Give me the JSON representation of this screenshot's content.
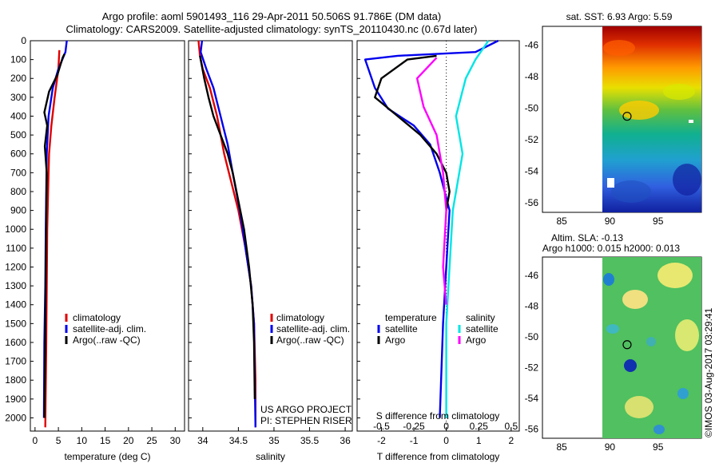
{
  "header": {
    "title_line1": "Argo profile: aoml 5901493_116 29-Apr-2011 50.506S 91.786E (DM data)",
    "title_line2": "Climatology: CARS2009. Satellite-adjusted climatology: synTS_20110430.nc (0.67d later)"
  },
  "colors": {
    "climatology": "#e00000",
    "satellite": "#0000ee",
    "argo": "#000000",
    "salinity_sat": "#00e5e5",
    "salinity_argo": "#ff00ff"
  },
  "chart_data": [
    {
      "type": "line",
      "name": "temperature",
      "xlabel": "temperature (deg C)",
      "xlim": [
        -1,
        32
      ],
      "ylim": [
        2070,
        0
      ],
      "xticks": [
        0,
        5,
        10,
        15,
        20,
        25,
        30
      ],
      "xtick_labels": [
        "0",
        "5",
        "10",
        "15",
        "20",
        "25",
        "30"
      ],
      "yticks": [
        0,
        100,
        200,
        300,
        400,
        500,
        600,
        700,
        800,
        900,
        1000,
        1100,
        1200,
        1300,
        1400,
        1500,
        1600,
        1700,
        1800,
        1900,
        2000
      ],
      "ytick_labels": [
        "0",
        "100",
        "200",
        "300",
        "400",
        "500",
        "600",
        "700",
        "800",
        "900",
        "1000",
        "1100",
        "1200",
        "1300",
        "1400",
        "1500",
        "1600",
        "1700",
        "1800",
        "1900",
        "2000"
      ],
      "legend": [
        "climatology",
        "satellite-adj. clim.",
        "Argo(..raw -QC)"
      ],
      "series": [
        {
          "name": "climatology",
          "color": "climatology",
          "points": [
            [
              5.2,
              50
            ],
            [
              5.0,
              150
            ],
            [
              4.2,
              300
            ],
            [
              3.5,
              450
            ],
            [
              3.0,
              600
            ],
            [
              2.8,
              800
            ],
            [
              2.6,
              1000
            ],
            [
              2.5,
              1300
            ],
            [
              2.4,
              1600
            ],
            [
              2.2,
              2050
            ]
          ]
        },
        {
          "name": "satellite-adj. clim.",
          "color": "satellite",
          "points": [
            [
              6.8,
              0
            ],
            [
              6.5,
              60
            ],
            [
              5.0,
              150
            ],
            [
              3.8,
              250
            ],
            [
              2.9,
              400
            ],
            [
              2.5,
              600
            ],
            [
              2.4,
              800
            ],
            [
              2.3,
              1000
            ],
            [
              2.2,
              1300
            ],
            [
              2.0,
              1600
            ],
            [
              1.9,
              2000
            ]
          ]
        },
        {
          "name": "Argo(..raw -QC)",
          "color": "argo",
          "points": [
            [
              6.3,
              70
            ],
            [
              5.9,
              90
            ],
            [
              4.8,
              180
            ],
            [
              3.0,
              270
            ],
            [
              2.0,
              380
            ],
            [
              2.6,
              450
            ],
            [
              2.1,
              560
            ],
            [
              2.5,
              700
            ],
            [
              2.4,
              900
            ],
            [
              2.3,
              1200
            ],
            [
              2.2,
              1500
            ],
            [
              2.1,
              1800
            ],
            [
              2.0,
              2000
            ]
          ]
        }
      ]
    },
    {
      "type": "line",
      "name": "salinity",
      "xlabel": "salinity",
      "xlim": [
        33.8,
        36.1
      ],
      "ylim": [
        2070,
        0
      ],
      "xticks": [
        34,
        34.5,
        35,
        35.5,
        36
      ],
      "xtick_labels": [
        "34",
        "34.5",
        "35",
        "35.5",
        "36"
      ],
      "legend": [
        "climatology",
        "satellite-adj. clim.",
        "Argo(..raw -QC)"
      ],
      "annotation_line1": "US ARGO PROJECT",
      "annotation_line2": "PI: STEPHEN RISER",
      "series": [
        {
          "name": "climatology",
          "color": "climatology",
          "points": [
            [
              33.94,
              0
            ],
            [
              33.96,
              80
            ],
            [
              34.0,
              150
            ],
            [
              34.1,
              250
            ],
            [
              34.2,
              400
            ],
            [
              34.3,
              600
            ],
            [
              34.4,
              750
            ],
            [
              34.5,
              900
            ],
            [
              34.6,
              1100
            ],
            [
              34.68,
              1300
            ],
            [
              34.72,
              1500
            ],
            [
              34.74,
              1800
            ],
            [
              34.74,
              2050
            ]
          ]
        },
        {
          "name": "satellite-adj. clim.",
          "color": "satellite",
          "points": [
            [
              33.99,
              0
            ],
            [
              33.97,
              60
            ],
            [
              34.05,
              150
            ],
            [
              34.15,
              250
            ],
            [
              34.25,
              400
            ],
            [
              34.35,
              550
            ],
            [
              34.42,
              700
            ],
            [
              34.52,
              900
            ],
            [
              34.6,
              1100
            ],
            [
              34.68,
              1300
            ],
            [
              34.72,
              1500
            ],
            [
              34.73,
              1800
            ],
            [
              34.74,
              2050
            ]
          ]
        },
        {
          "name": "Argo(..raw -QC)",
          "color": "argo",
          "points": [
            [
              33.96,
              80
            ],
            [
              34.02,
              200
            ],
            [
              34.08,
              300
            ],
            [
              34.15,
              400
            ],
            [
              34.25,
              500
            ],
            [
              34.35,
              600
            ],
            [
              34.42,
              700
            ],
            [
              34.5,
              850
            ],
            [
              34.58,
              1000
            ],
            [
              34.65,
              1200
            ],
            [
              34.7,
              1400
            ],
            [
              34.72,
              1600
            ],
            [
              34.73,
              1900
            ]
          ]
        }
      ]
    },
    {
      "type": "line",
      "name": "differences",
      "xlabel_top": "S difference from climatology",
      "xlabel": "T difference from climatology",
      "xlim": [
        -2.75,
        2.25
      ],
      "ylim": [
        2070,
        0
      ],
      "xticks": [
        -2,
        -1,
        0,
        1,
        2
      ],
      "xtick_labels": [
        "-2",
        "-1",
        "0",
        "1",
        "2"
      ],
      "sticks": [
        -2,
        -1,
        0,
        1,
        2
      ],
      "stick_labels": [
        "-0.5",
        "-0.25",
        "0",
        "0.25",
        "0.5"
      ],
      "legend_headers": [
        "temperature",
        "salinity"
      ],
      "legend": [
        "satellite",
        "Argo",
        "satellite",
        "Argo"
      ],
      "series": [
        {
          "name": "T satellite",
          "color": "satellite",
          "points": [
            [
              1.6,
              0
            ],
            [
              0.9,
              60
            ],
            [
              -1.5,
              80
            ],
            [
              -2.5,
              100
            ],
            [
              -2.2,
              250
            ],
            [
              -1.8,
              360
            ],
            [
              -1.0,
              450
            ],
            [
              -0.5,
              550
            ],
            [
              -0.2,
              700
            ],
            [
              0.1,
              900
            ],
            [
              0.0,
              1200
            ],
            [
              -0.1,
              1500
            ],
            [
              -0.2,
              2000
            ]
          ]
        },
        {
          "name": "T Argo",
          "color": "argo",
          "points": [
            [
              -0.3,
              80
            ],
            [
              -1.2,
              100
            ],
            [
              -2.0,
              200
            ],
            [
              -2.2,
              300
            ],
            [
              -1.5,
              400
            ],
            [
              -0.8,
              500
            ],
            [
              -0.3,
              600
            ],
            [
              0.0,
              700
            ],
            [
              0.1,
              800
            ],
            [
              0.0,
              900
            ]
          ]
        },
        {
          "name": "S satellite",
          "color": "salinity_sat",
          "points": [
            [
              1.3,
              0
            ],
            [
              0.9,
              100
            ],
            [
              0.6,
              200
            ],
            [
              0.3,
              400
            ],
            [
              0.4,
              500
            ],
            [
              0.5,
              600
            ],
            [
              0.4,
              700
            ],
            [
              0.2,
              900
            ],
            [
              0.1,
              1200
            ],
            [
              0.0,
              1500
            ],
            [
              0.0,
              2000
            ]
          ]
        },
        {
          "name": "S Argo",
          "color": "salinity_argo",
          "points": [
            [
              -0.3,
              90
            ],
            [
              -0.9,
              200
            ],
            [
              -0.7,
              350
            ],
            [
              -0.3,
              500
            ],
            [
              -0.1,
              700
            ],
            [
              0.0,
              900
            ],
            [
              -0.1,
              1200
            ],
            [
              0.0,
              1400
            ]
          ]
        }
      ]
    },
    {
      "type": "heatmap",
      "name": "sst_map",
      "title": "sat. SST: 6.93 Argo: 5.59",
      "xlim": [
        83,
        99.5
      ],
      "ylim": [
        -56.6,
        -44.8
      ],
      "xticks": [
        85,
        90,
        95
      ],
      "xtick_labels": [
        "85",
        "90",
        "95"
      ],
      "yticks": [
        -46,
        -48,
        -50,
        -52,
        -54,
        -56
      ],
      "ytick_labels": [
        "-46",
        "-48",
        "-50",
        "-52",
        "-54",
        "-56"
      ],
      "float_position": [
        91.786,
        -50.506
      ]
    },
    {
      "type": "heatmap",
      "name": "sla_map",
      "title_line1": "Altim. SLA: -0.13",
      "title_line2": "Argo h1000: 0.015 h2000: 0.013",
      "xlim": [
        83,
        99.5
      ],
      "ylim": [
        -56.6,
        -44.8
      ],
      "xticks": [
        85,
        90,
        95
      ],
      "xtick_labels": [
        "85",
        "90",
        "95"
      ],
      "yticks": [
        -46,
        -48,
        -50,
        -52,
        -54,
        -56
      ],
      "ytick_labels": [
        "-46",
        "-48",
        "-50",
        "-52",
        "-54",
        "-56"
      ],
      "float_position": [
        91.786,
        -50.506
      ]
    }
  ],
  "footer": {
    "credit": "©IMOS 03-Aug-2017 03:29:41"
  }
}
